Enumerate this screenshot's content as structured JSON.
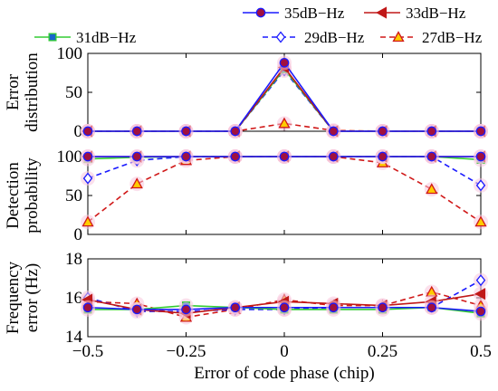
{
  "chart_data": [
    {
      "type": "line",
      "id": "error-distribution",
      "ylabel": [
        "Error",
        "distribution"
      ],
      "ylim": [
        0,
        100
      ],
      "yticks": [
        0,
        50,
        100
      ],
      "ytick_labels": [
        "0",
        "50",
        "100"
      ],
      "x": [
        -0.5,
        -0.375,
        -0.25,
        -0.125,
        0,
        0.125,
        0.25,
        0.375,
        0.5
      ],
      "series": [
        {
          "name": "35dB−Hz",
          "values": [
            0,
            0,
            0,
            0,
            88,
            0,
            0,
            0,
            0
          ]
        },
        {
          "name": "33dB−Hz",
          "values": [
            0,
            0,
            0,
            0,
            82,
            0,
            0,
            0,
            0
          ]
        },
        {
          "name": "31dB−Hz",
          "values": [
            0,
            0,
            0,
            0,
            80,
            0,
            0,
            0,
            0
          ]
        },
        {
          "name": "29dB−Hz",
          "values": [
            0,
            0,
            0,
            0,
            78,
            0,
            0,
            0,
            0
          ]
        },
        {
          "name": "27dB−Hz",
          "values": [
            0,
            0,
            0,
            0,
            10,
            1,
            0,
            0,
            0
          ]
        }
      ]
    },
    {
      "type": "line",
      "id": "detection-probability",
      "ylabel": [
        "Detection",
        "probability"
      ],
      "ylim": [
        0,
        100
      ],
      "yticks": [
        0,
        50,
        100
      ],
      "ytick_labels": [
        "0",
        "50",
        "100"
      ],
      "x": [
        -0.5,
        -0.375,
        -0.25,
        -0.125,
        0,
        0.125,
        0.25,
        0.375,
        0.5
      ],
      "series": [
        {
          "name": "35dB−Hz",
          "values": [
            100,
            100,
            100,
            100,
            100,
            100,
            100,
            100,
            100
          ]
        },
        {
          "name": "33dB−Hz",
          "values": [
            100,
            100,
            100,
            100,
            100,
            100,
            100,
            100,
            100
          ]
        },
        {
          "name": "31dB−Hz",
          "values": [
            97,
            99,
            100,
            100,
            100,
            100,
            100,
            100,
            96
          ]
        },
        {
          "name": "29dB−Hz",
          "values": [
            72,
            95,
            100,
            100,
            100,
            100,
            100,
            100,
            63
          ]
        },
        {
          "name": "27dB−Hz",
          "values": [
            16,
            65,
            95,
            100,
            100,
            100,
            92,
            58,
            16
          ]
        }
      ]
    },
    {
      "type": "line",
      "id": "frequency-error",
      "ylabel": [
        "Frequency",
        "error (Hz)"
      ],
      "xlabel": "Error of code phase (chip)",
      "ylim": [
        14,
        18
      ],
      "yticks": [
        14,
        16,
        18
      ],
      "ytick_labels": [
        "14",
        "16",
        "18"
      ],
      "xticks": [
        -0.5,
        -0.25,
        0,
        0.25,
        0.5
      ],
      "xtick_labels": [
        "−0.5",
        "−0.25",
        "0",
        "0.25",
        "0.5"
      ],
      "x": [
        -0.5,
        -0.375,
        -0.25,
        -0.125,
        0,
        0.125,
        0.25,
        0.375,
        0.5
      ],
      "series": [
        {
          "name": "35dB−Hz",
          "values": [
            15.5,
            15.4,
            15.4,
            15.5,
            15.5,
            15.5,
            15.5,
            15.5,
            15.3
          ]
        },
        {
          "name": "33dB−Hz",
          "values": [
            15.9,
            15.4,
            15.2,
            15.5,
            15.8,
            15.7,
            15.6,
            15.8,
            16.2
          ]
        },
        {
          "name": "31dB−Hz",
          "values": [
            15.4,
            15.4,
            15.6,
            15.5,
            15.4,
            15.4,
            15.4,
            15.5,
            15.2
          ]
        },
        {
          "name": "29dB−Hz",
          "values": [
            16.0,
            15.3,
            15.3,
            15.4,
            15.4,
            15.5,
            15.5,
            15.5,
            16.9
          ]
        },
        {
          "name": "27dB−Hz",
          "values": [
            15.8,
            15.7,
            15.0,
            15.4,
            15.9,
            15.6,
            15.6,
            16.3,
            15.6
          ]
        }
      ]
    }
  ],
  "legend": [
    {
      "label": "35dB−Hz",
      "color": "#1a1aff",
      "marker": "circle",
      "marker_fill": "#a01040",
      "dash": "solid"
    },
    {
      "label": "33dB−Hz",
      "color": "#c01818",
      "marker": "triangle-left",
      "marker_fill": "#c01818",
      "dash": "solid"
    },
    {
      "label": "31dB−Hz",
      "color": "#33cc33",
      "marker": "square",
      "marker_fill": "#1a66cc",
      "dash": "solid"
    },
    {
      "label": "29dB−Hz",
      "color": "#1a1aff",
      "marker": "diamond",
      "marker_fill": "#ffffff",
      "dash": "dashed"
    },
    {
      "label": "27dB−Hz",
      "color": "#d01818",
      "marker": "triangle-up",
      "marker_fill": "#ffcc00",
      "dash": "dashed"
    }
  ]
}
